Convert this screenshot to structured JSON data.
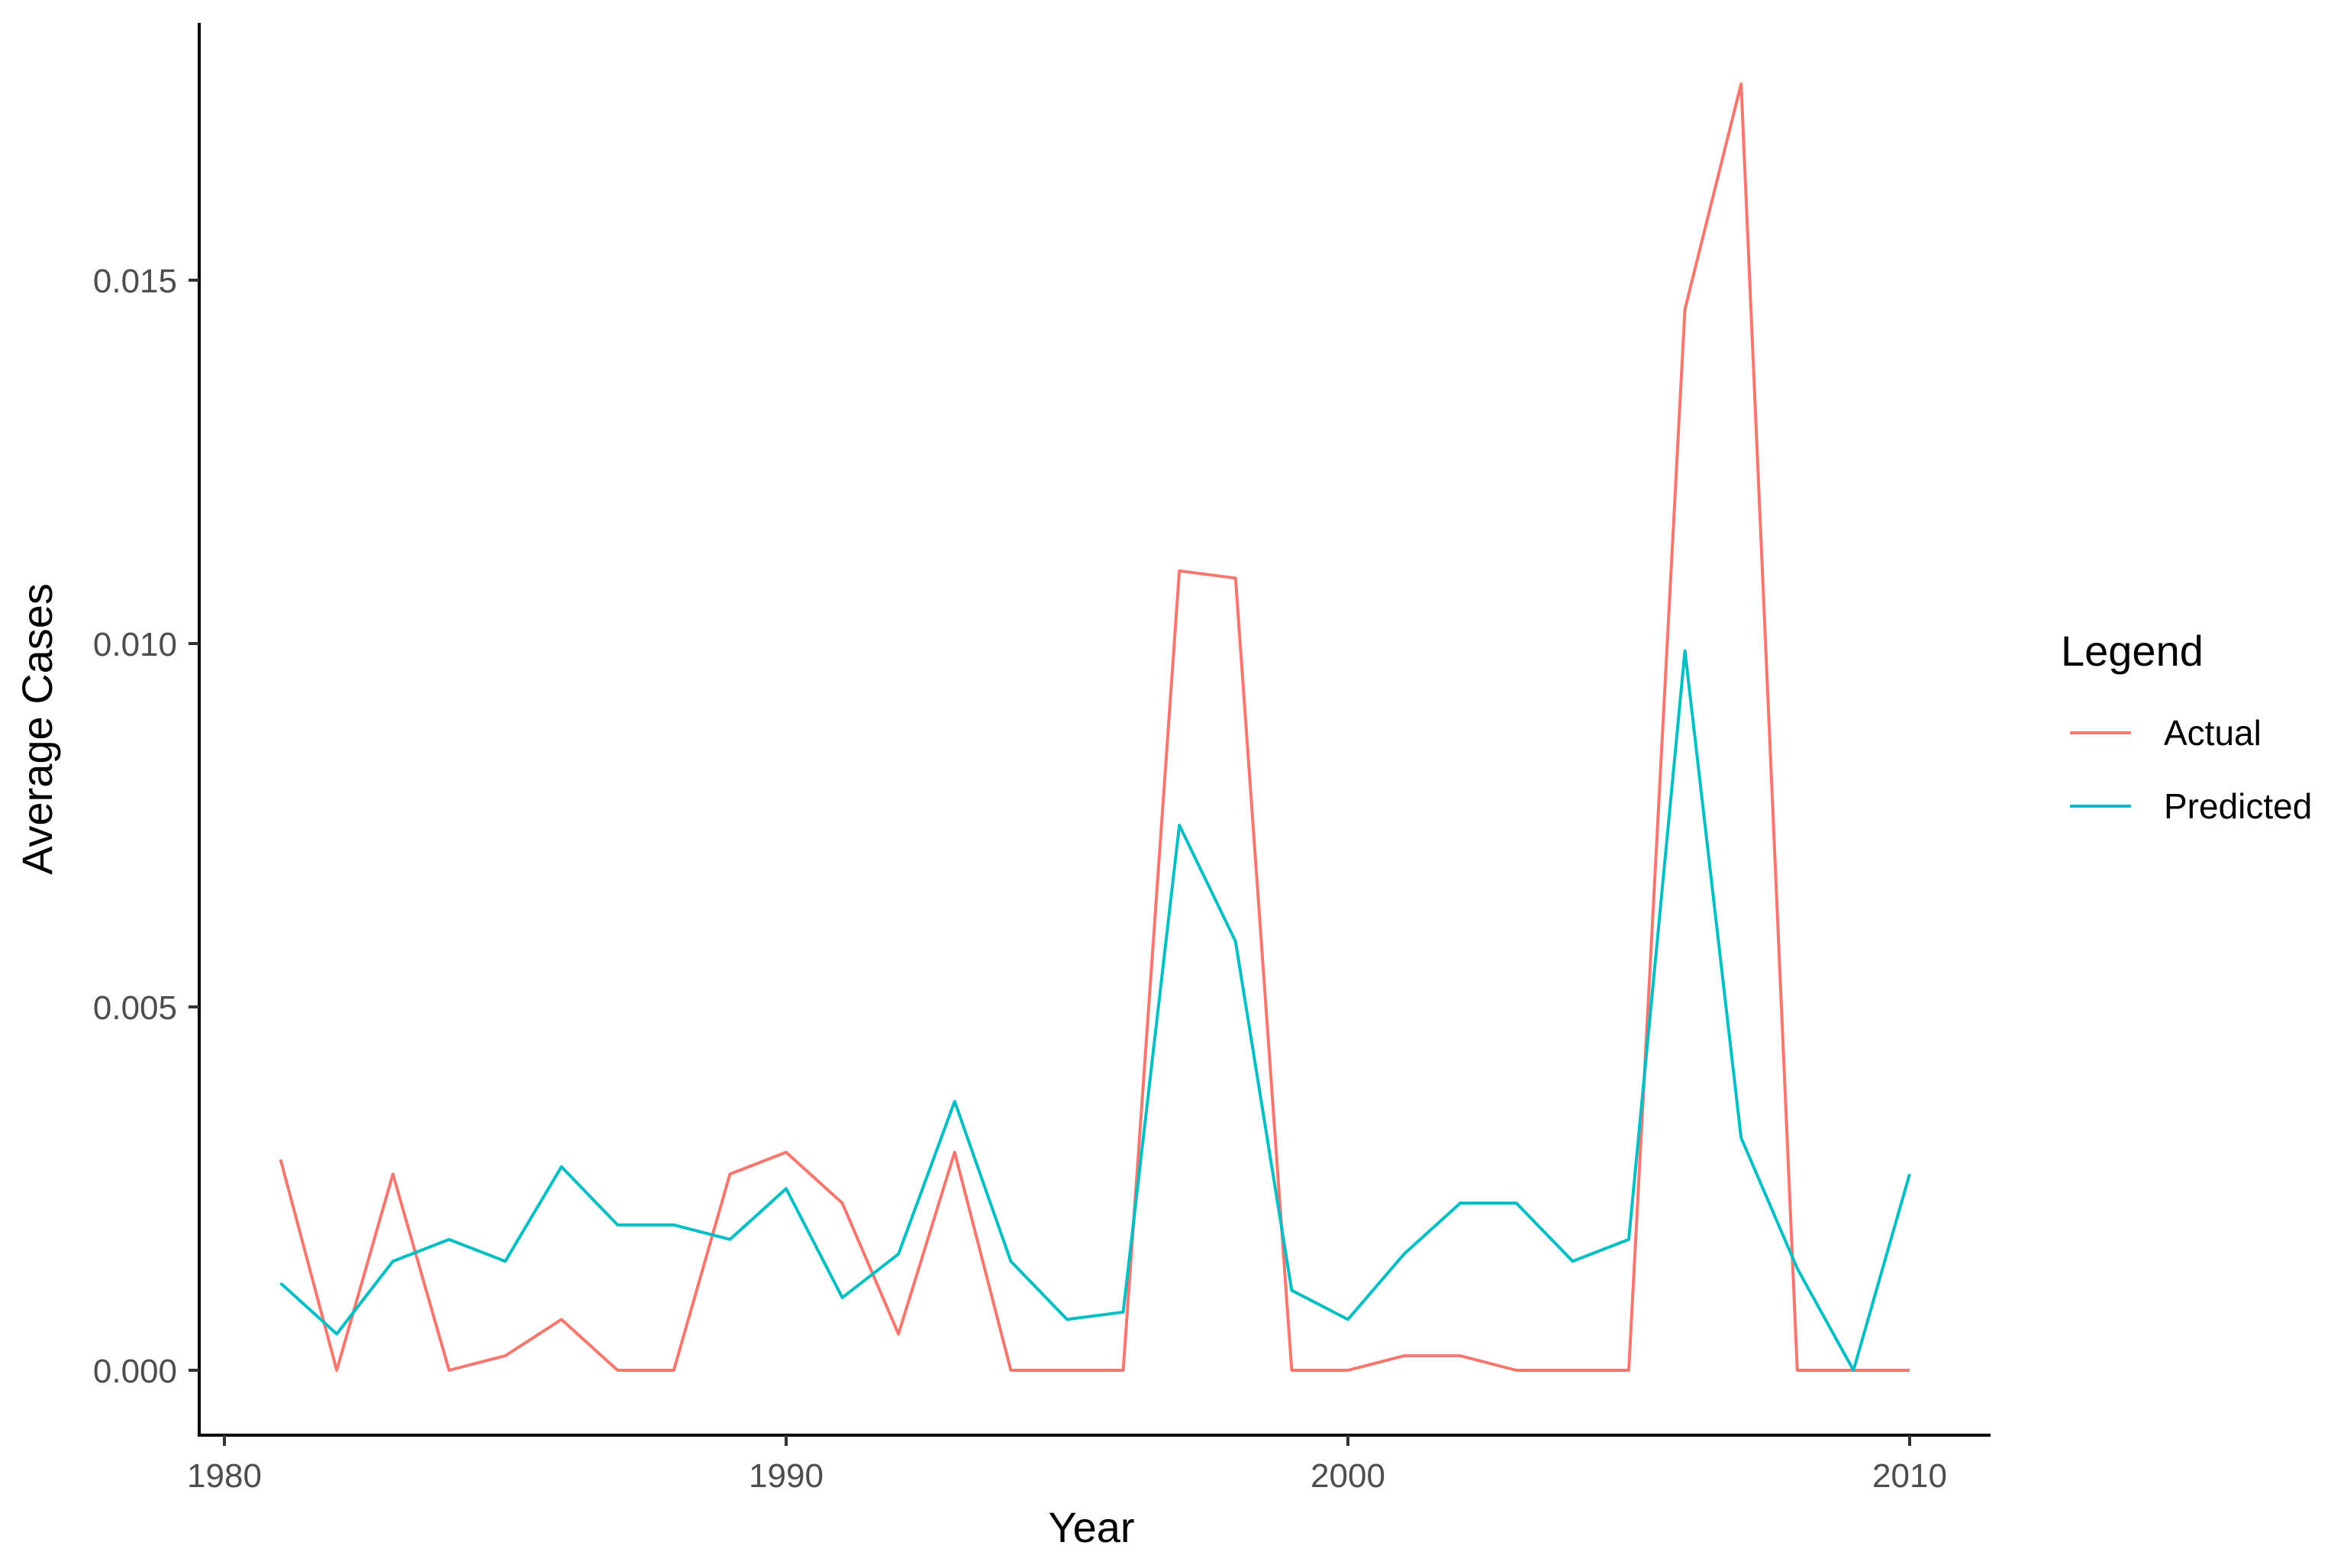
{
  "chart_data": {
    "type": "line",
    "title": "",
    "xlabel": "Year",
    "ylabel": "Average Cases",
    "x": [
      1981,
      1982,
      1983,
      1984,
      1985,
      1986,
      1987,
      1988,
      1989,
      1990,
      1991,
      1992,
      1993,
      1994,
      1995,
      1996,
      1997,
      1998,
      1999,
      2000,
      2001,
      2002,
      2003,
      2004,
      2005,
      2006,
      2007,
      2008,
      2009,
      2010
    ],
    "series": [
      {
        "name": "Actual",
        "color": "#F8766D",
        "values": [
          0.0029,
          0.0,
          0.0027,
          0.0,
          0.0002,
          0.0007,
          0.0,
          0.0,
          0.0027,
          0.003,
          0.0023,
          0.0005,
          0.003,
          0.0,
          0.0,
          0.0,
          0.011,
          0.0109,
          0.0,
          0.0,
          0.0002,
          0.0002,
          0.0,
          0.0,
          0.0,
          0.0146,
          0.0177,
          0.0,
          0.0,
          0.0
        ]
      },
      {
        "name": "Predicted",
        "color": "#00BFC4",
        "values": [
          0.0012,
          0.0005,
          0.0015,
          0.0018,
          0.0015,
          0.0028,
          0.002,
          0.002,
          0.0018,
          0.0025,
          0.001,
          0.0016,
          0.0037,
          0.0015,
          0.0007,
          0.0008,
          0.0075,
          0.0059,
          0.0011,
          0.0007,
          0.0016,
          0.0023,
          0.0023,
          0.0015,
          0.0018,
          0.0099,
          0.0032,
          0.0014,
          0.0,
          0.0027
        ]
      }
    ],
    "xticks": [
      "1980",
      "1990",
      "2000",
      "2010"
    ],
    "yticks": [
      "0.000",
      "0.005",
      "0.010",
      "0.015"
    ],
    "xlim": [
      1979.6,
      2011.4
    ],
    "ylim": [
      -0.0013,
      0.0185
    ],
    "grid": false,
    "legend_title": "Legend",
    "legend_position": "right"
  }
}
